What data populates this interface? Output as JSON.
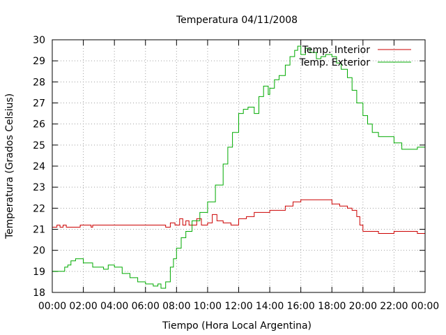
{
  "chart_data": {
    "type": "line",
    "title": "Temperatura 04/11/2008",
    "xlabel": "Tiempo (Hora Local Argentina)",
    "ylabel": "Temperatura (Grados Celsius)",
    "xlim": [
      0,
      24
    ],
    "ylim": [
      18,
      30
    ],
    "x_tick_labels": [
      "00:00",
      "02:00",
      "04:00",
      "06:00",
      "08:00",
      "10:00",
      "12:00",
      "14:00",
      "16:00",
      "18:00",
      "20:00",
      "22:00",
      "00:00"
    ],
    "y_tick_labels": [
      "18",
      "19",
      "20",
      "21",
      "22",
      "23",
      "24",
      "25",
      "26",
      "27",
      "28",
      "29",
      "30"
    ],
    "grid": true,
    "legend_position": "top-right",
    "series": [
      {
        "name": "Temp. Interior",
        "color": "#cc0000",
        "x": [
          0,
          0.3,
          0.5,
          0.7,
          0.9,
          1,
          1.5,
          1.8,
          2.2,
          2.5,
          2.6,
          3,
          4,
          5,
          6,
          7,
          7.3,
          7.6,
          7.9,
          8.2,
          8.4,
          8.6,
          8.8,
          9,
          9.3,
          9.6,
          10,
          10.3,
          10.6,
          11,
          11.5,
          12,
          12.5,
          13,
          14,
          14.5,
          15,
          15.5,
          16,
          16.5,
          17,
          17.5,
          18,
          18.5,
          19,
          19.3,
          19.6,
          19.8,
          20,
          20.5,
          21,
          21.5,
          22,
          22.5,
          23,
          23.5,
          24
        ],
        "y": [
          21.1,
          21.2,
          21.1,
          21.2,
          21.1,
          21.1,
          21.1,
          21.2,
          21.2,
          21.1,
          21.2,
          21.2,
          21.2,
          21.2,
          21.2,
          21.2,
          21.1,
          21.3,
          21.2,
          21.5,
          21.2,
          21.4,
          21.2,
          21.2,
          21.5,
          21.2,
          21.3,
          21.7,
          21.4,
          21.3,
          21.2,
          21.5,
          21.6,
          21.8,
          21.9,
          21.9,
          22.1,
          22.3,
          22.4,
          22.4,
          22.4,
          22.4,
          22.2,
          22.1,
          22,
          21.9,
          21.6,
          21.2,
          20.9,
          20.9,
          20.8,
          20.8,
          20.9,
          20.9,
          20.9,
          20.8,
          20.8
        ]
      },
      {
        "name": "Temp. Exterior",
        "color": "#00aa00",
        "x": [
          0,
          0.5,
          0.8,
          1,
          1.2,
          1.5,
          2,
          2.3,
          2.6,
          3,
          3.3,
          3.6,
          4,
          4.5,
          5,
          5.5,
          6,
          6.5,
          6.8,
          7,
          7.3,
          7.6,
          7.8,
          8,
          8.3,
          8.6,
          9,
          9.5,
          10,
          10.5,
          11,
          11.3,
          11.6,
          12,
          12.3,
          12.6,
          13,
          13.3,
          13.6,
          13.9,
          14,
          14.3,
          14.6,
          15,
          15.3,
          15.6,
          15.8,
          16,
          16.3,
          16.6,
          17,
          17.3,
          17.6,
          18,
          18.3,
          18.6,
          19,
          19.3,
          19.6,
          20,
          20.3,
          20.6,
          21,
          21.5,
          22,
          22.5,
          23,
          23.5,
          24
        ],
        "y": [
          19,
          19,
          19.2,
          19.3,
          19.5,
          19.6,
          19.4,
          19.4,
          19.2,
          19.2,
          19.1,
          19.3,
          19.2,
          18.9,
          18.7,
          18.5,
          18.4,
          18.3,
          18.4,
          18.2,
          18.5,
          19.2,
          19.6,
          20.1,
          20.6,
          20.9,
          21.4,
          21.8,
          22.3,
          23.1,
          24.1,
          24.9,
          25.6,
          26.5,
          26.7,
          26.8,
          26.5,
          27.3,
          27.8,
          27.4,
          27.7,
          28.1,
          28.3,
          28.8,
          29.2,
          29.5,
          29.7,
          29.3,
          29.6,
          29.4,
          29.1,
          29.2,
          29.3,
          29.2,
          28.9,
          28.6,
          28.2,
          27.6,
          27,
          26.4,
          26,
          25.6,
          25.4,
          25.4,
          25.1,
          24.8,
          24.8,
          24.9,
          25
        ]
      }
    ]
  }
}
